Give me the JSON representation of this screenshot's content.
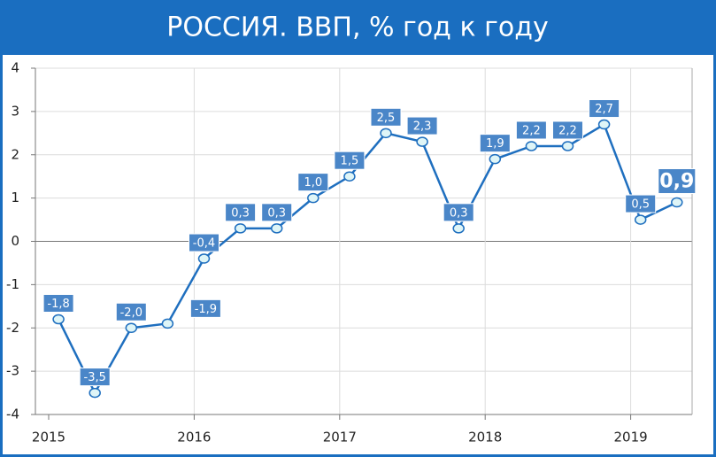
{
  "chart_data": {
    "type": "line",
    "title": "РОССИЯ. ВВП, % год к году",
    "categories": [
      null,
      null,
      null,
      null,
      null,
      null,
      null,
      null,
      null,
      null,
      null,
      null,
      null,
      null,
      null,
      null,
      null,
      null
    ],
    "series": [
      {
        "color": "#1f6fbf",
        "values": [
          -1.8,
          -3.5,
          -2.0,
          -1.9,
          -0.4,
          0.3,
          0.3,
          1.0,
          1.5,
          2.5,
          2.3,
          0.3,
          1.9,
          2.2,
          2.2,
          2.7,
          0.5,
          0.9
        ],
        "value_labels": [
          "-1,8",
          "-3,5",
          "-2,0",
          "-1,9",
          "-0,4",
          "0,3",
          "0,3",
          "1,0",
          "1,5",
          "2,5",
          "2,3",
          "0,3",
          "1,9",
          "2,2",
          "2,2",
          "2,7",
          "0,5",
          "0,9"
        ]
      }
    ],
    "xticks": [
      2015,
      2016,
      2017,
      2018,
      2019
    ],
    "ylim": [
      -4,
      4
    ],
    "yticks": [
      -4,
      -3,
      -2,
      -1,
      0,
      1,
      2,
      3,
      4
    ],
    "grid": true
  }
}
